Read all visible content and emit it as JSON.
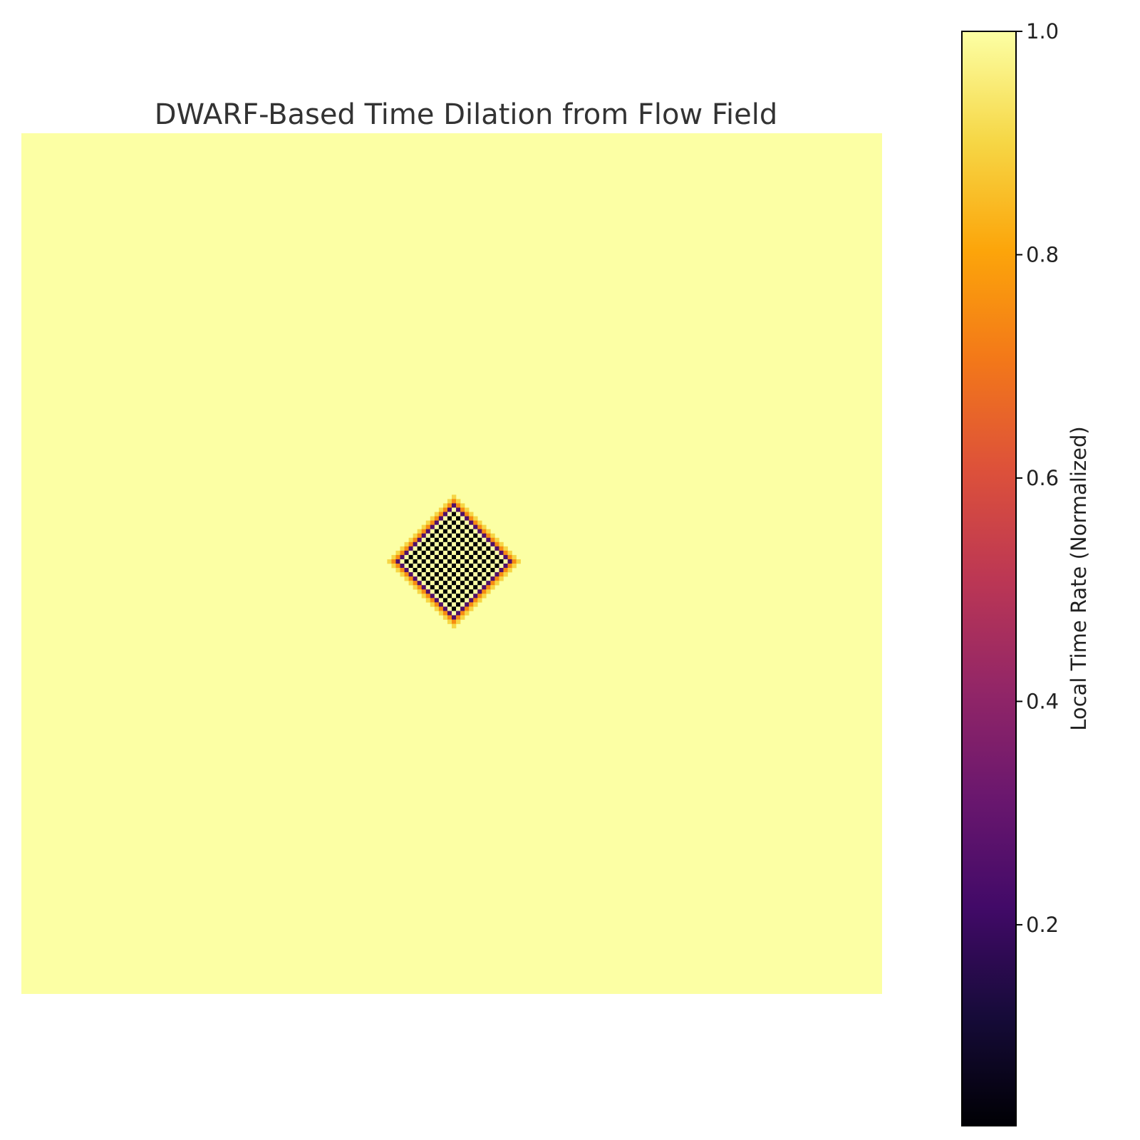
{
  "chart_data": {
    "type": "heatmap",
    "title": "DWARF-Based Time Dilation from Flow Field",
    "grid_size": 200,
    "cmap": "inferno",
    "vmin": 0.02,
    "vmax": 1.0,
    "background_value": 1.0,
    "feature": {
      "shape": "diamond",
      "center_col": 100,
      "center_row": 99,
      "radius_cells": 14,
      "pattern": "checkerboard",
      "checker_low_value": 0.02,
      "checker_high_value": 1.0,
      "edge_values": [
        0.25,
        0.55,
        0.75,
        0.9
      ]
    },
    "axes_visible": false,
    "colorbar": {
      "label": "Local Time Rate (Normalized)",
      "ticks": [
        0.2,
        0.4,
        0.6,
        0.8,
        1.0
      ],
      "tick_labels": [
        "0.2",
        "0.4",
        "0.6",
        "0.8",
        "1.0"
      ],
      "location": "right"
    }
  }
}
